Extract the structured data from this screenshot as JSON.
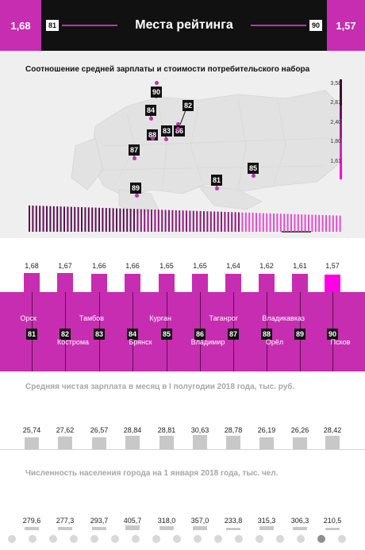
{
  "header": {
    "left_value": "1,68",
    "left_rank": "81",
    "title": "Места рейтинга",
    "right_rank": "90",
    "right_value": "1,57"
  },
  "map": {
    "title": "Соотношение средней зарплаты и стоимости потребительского набора",
    "legend": [
      "3,58",
      "2,87",
      "2,40",
      "1,80",
      "1,61"
    ],
    "pins": [
      "90",
      "84",
      "82",
      "88",
      "83",
      "86",
      "87",
      "89",
      "81",
      "85"
    ]
  },
  "chart_data": [
    {
      "type": "bar",
      "title": "",
      "categories": [
        "Орск",
        "Кострома",
        "Тамбов",
        "Брянск",
        "Курган",
        "Владимир",
        "Таганрог",
        "Орёл",
        "Владикавказ",
        "Псков"
      ],
      "ranks": [
        "81",
        "82",
        "83",
        "84",
        "85",
        "86",
        "87",
        "88",
        "89",
        "90"
      ],
      "values": [
        1.68,
        1.67,
        1.66,
        1.66,
        1.65,
        1.65,
        1.64,
        1.62,
        1.61,
        1.57
      ],
      "value_labels": [
        "1,68",
        "1,67",
        "1,66",
        "1,66",
        "1,65",
        "1,65",
        "1,64",
        "1,62",
        "1,61",
        "1,57"
      ],
      "ylim": [
        0,
        1.7
      ]
    },
    {
      "type": "bar",
      "title": "Средняя чистая зарплата в месяц в I полугодии 2018 года, тыс. руб.",
      "categories": [
        "Орск",
        "Кострома",
        "Тамбов",
        "Брянск",
        "Курган",
        "Владимир",
        "Таганрог",
        "Орёл",
        "Владикавказ",
        "Псков"
      ],
      "values": [
        25.74,
        27.62,
        26.57,
        28.84,
        28.81,
        30.63,
        28.78,
        26.19,
        26.26,
        28.42
      ],
      "value_labels": [
        "25,74",
        "27,62",
        "26,57",
        "28,84",
        "28,81",
        "30,63",
        "28,78",
        "26,19",
        "26,26",
        "28,42"
      ],
      "ylim": [
        0,
        31
      ]
    },
    {
      "type": "bar",
      "title": "Численность населения города на 1 января 2018 года, тыс. чел.",
      "categories": [
        "Орск",
        "Кострома",
        "Тамбов",
        "Брянск",
        "Курган",
        "Владимир",
        "Таганрог",
        "Орёл",
        "Владикавказ",
        "Псков"
      ],
      "values": [
        279.6,
        277.3,
        293.7,
        405.7,
        318.0,
        357.0,
        233.8,
        315.3,
        306.3,
        210.5
      ],
      "value_labels": [
        "279,6",
        "277,3",
        "293,7",
        "405,7",
        "318,0",
        "357,0",
        "233,8",
        "315,3",
        "306,3",
        "210,5"
      ],
      "ylim": [
        0,
        410
      ]
    }
  ],
  "colors": {
    "accent": "#c72db0",
    "highlight": "#ff00e6",
    "dark": "#111111",
    "map_bg": "#efefef",
    "grey_bar": "#c8c8c8"
  }
}
